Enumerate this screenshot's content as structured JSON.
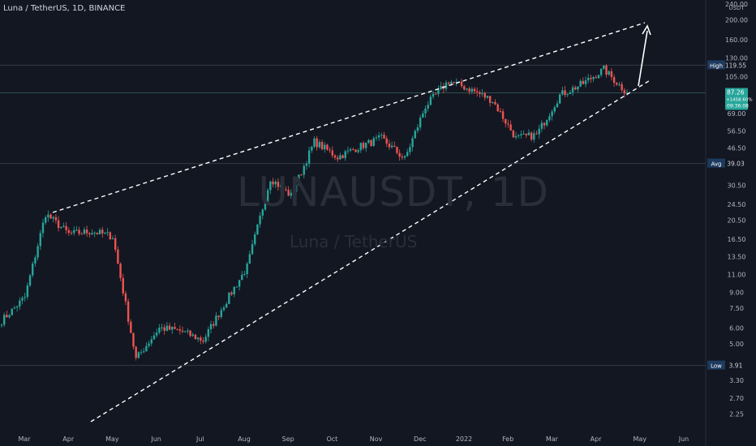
{
  "header": {
    "title": "Luna / TetherUS, 1D, BINANCE"
  },
  "watermark": {
    "symbol": "LUNAUSDT, 1D",
    "description": "Luna / TetherUS"
  },
  "axis": {
    "currency": "USDT"
  },
  "price_labels": {
    "high": {
      "label": "High",
      "value": "119.55"
    },
    "current": {
      "price": "87.26",
      "change": "+1458.60%",
      "countdown": "09:36:08",
      "color": "#26a69a"
    },
    "avg": {
      "label": "Avg",
      "value": "39.03"
    },
    "low": {
      "label": "Low",
      "value": "3.91"
    }
  },
  "chart_data": {
    "type": "candlestick",
    "symbol": "LUNAUSDT",
    "interval": "1D",
    "exchange": "BINANCE",
    "y_scale": "log",
    "y_ticks": [
      "240.00",
      "200.00",
      "160.00",
      "130.00",
      "105.00",
      "69.00",
      "56.50",
      "46.50",
      "30.50",
      "24.50",
      "20.50",
      "16.50",
      "13.50",
      "11.00",
      "9.00",
      "7.50",
      "6.00",
      "5.00",
      "3.30",
      "2.70",
      "2.25"
    ],
    "x_ticks": [
      "Mar",
      "Apr",
      "May",
      "Jun",
      "Jul",
      "Aug",
      "Sep",
      "Oct",
      "Nov",
      "Dec",
      "2022",
      "Feb",
      "Mar",
      "Apr",
      "May",
      "Jun"
    ],
    "price_path": [
      {
        "month": "Mar",
        "price": 6.5
      },
      {
        "month": "Mar",
        "price": 8.5
      },
      {
        "month": "Apr",
        "price": 22.0
      },
      {
        "month": "Apr",
        "price": 17.5
      },
      {
        "month": "May",
        "price": 18.0
      },
      {
        "month": "May",
        "price": 17.0
      },
      {
        "month": "May",
        "price": 4.2
      },
      {
        "month": "Jun",
        "price": 6.0
      },
      {
        "month": "Jun",
        "price": 5.8
      },
      {
        "month": "Jul",
        "price": 5.2
      },
      {
        "month": "Jul",
        "price": 7.8
      },
      {
        "month": "Aug",
        "price": 12.0
      },
      {
        "month": "Aug",
        "price": 33.0
      },
      {
        "month": "Sep",
        "price": 27.0
      },
      {
        "month": "Sep",
        "price": 50.0
      },
      {
        "month": "Oct",
        "price": 42.0
      },
      {
        "month": "Oct",
        "price": 47.0
      },
      {
        "month": "Nov",
        "price": 52.0
      },
      {
        "month": "Nov",
        "price": 41.0
      },
      {
        "month": "Dec",
        "price": 75.0
      },
      {
        "month": "Dec",
        "price": 100.0
      },
      {
        "month": "2022",
        "price": 90.0
      },
      {
        "month": "2022",
        "price": 80.0
      },
      {
        "month": "Feb",
        "price": 52.0
      },
      {
        "month": "Feb",
        "price": 54.0
      },
      {
        "month": "Mar",
        "price": 85.0
      },
      {
        "month": "Mar",
        "price": 97.0
      },
      {
        "month": "Apr",
        "price": 114.0
      },
      {
        "month": "Apr",
        "price": 87.26
      }
    ],
    "legend": "none"
  }
}
